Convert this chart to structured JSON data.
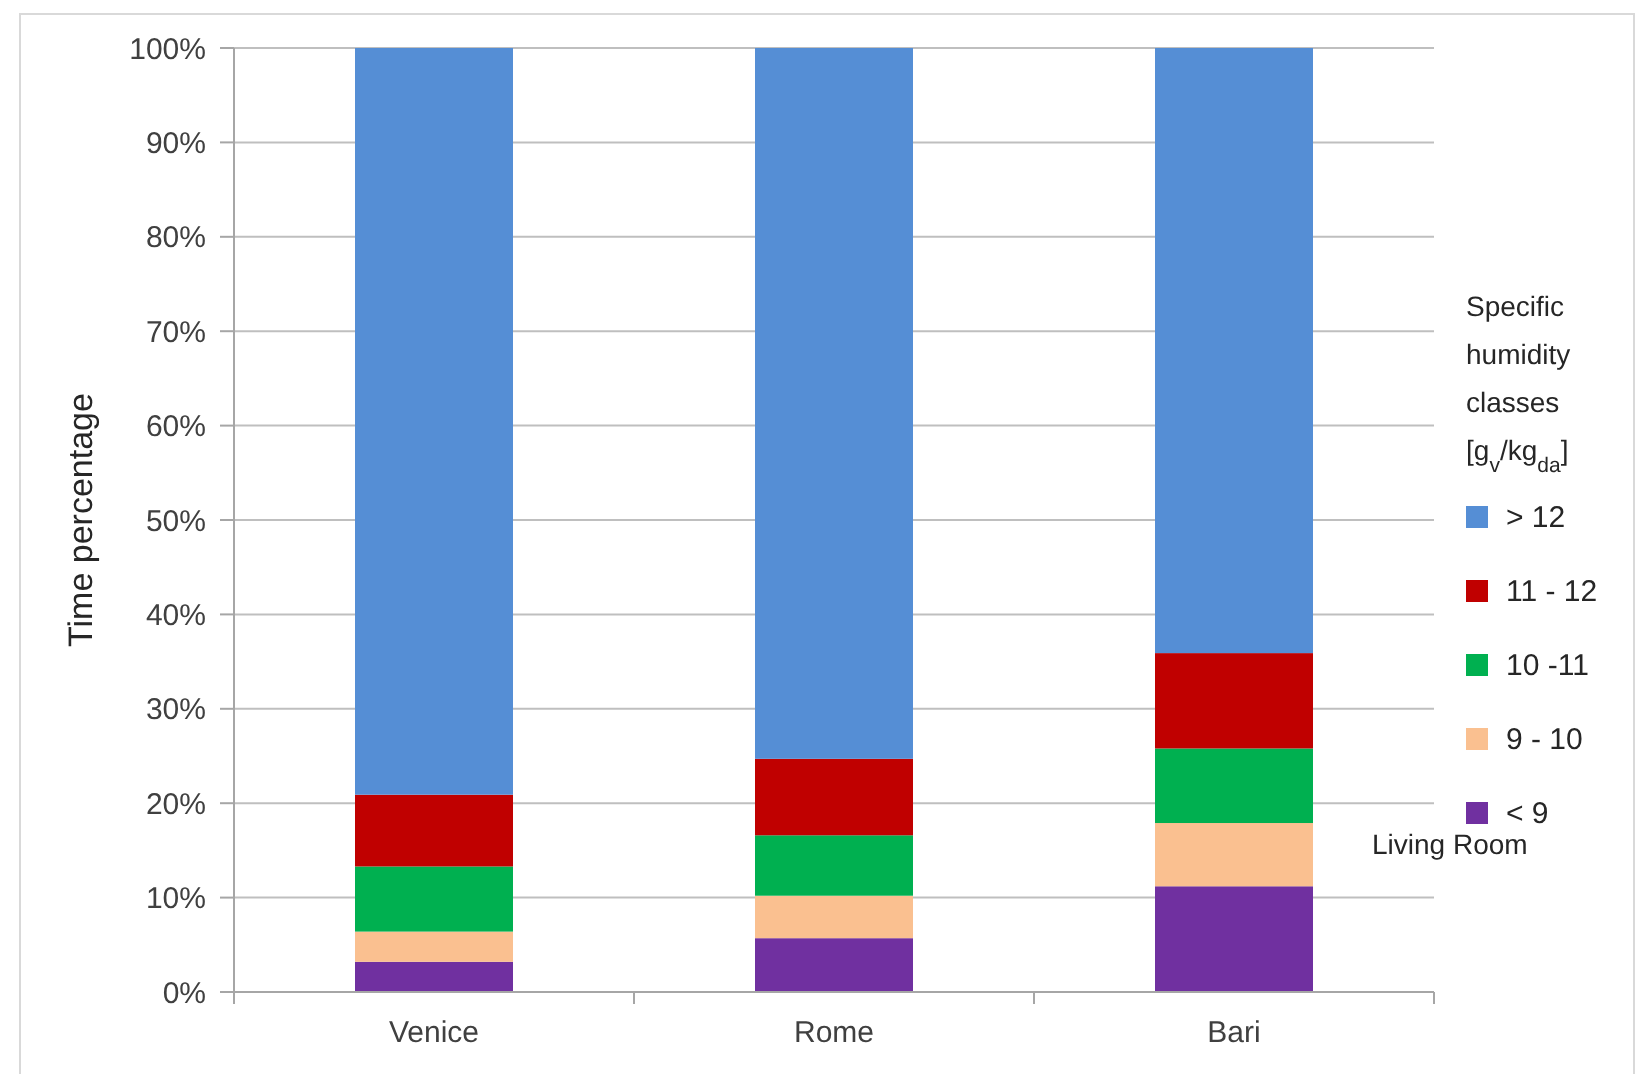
{
  "chart_data": {
    "type": "bar",
    "stacked": true,
    "categories": [
      "Venice",
      "Rome",
      "Bari"
    ],
    "series": [
      {
        "name": "< 9",
        "color": "#7030a0",
        "values": [
          3.2,
          5.7,
          11.2
        ]
      },
      {
        "name": "9 - 10",
        "color": "#fac090",
        "values": [
          3.2,
          4.5,
          6.7
        ]
      },
      {
        "name": "10 -11",
        "color": "#00b050",
        "values": [
          6.9,
          6.4,
          7.9
        ]
      },
      {
        "name": "11 - 12",
        "color": "#c00000",
        "values": [
          7.6,
          8.1,
          10.1
        ]
      },
      {
        "name": "> 12",
        "color": "#558ed5",
        "values": [
          79.1,
          75.3,
          64.1
        ]
      }
    ],
    "ylim": [
      0,
      100
    ],
    "yticks": [
      {
        "value": 0,
        "label": "0%"
      },
      {
        "value": 10,
        "label": "10%"
      },
      {
        "value": 20,
        "label": "20%"
      },
      {
        "value": 30,
        "label": "30%"
      },
      {
        "value": 40,
        "label": "40%"
      },
      {
        "value": 50,
        "label": "50%"
      },
      {
        "value": 60,
        "label": "60%"
      },
      {
        "value": 70,
        "label": "70%"
      },
      {
        "value": 80,
        "label": "80%"
      },
      {
        "value": 90,
        "label": "90%"
      },
      {
        "value": 100,
        "label": "100%"
      }
    ],
    "ylabel": "Time percentage",
    "legend_title": "Specific humidity classes [g$_{v}$/kg$_{da}$]",
    "legend": "right",
    "grid": "y",
    "annotations": [
      "Living Room"
    ]
  }
}
